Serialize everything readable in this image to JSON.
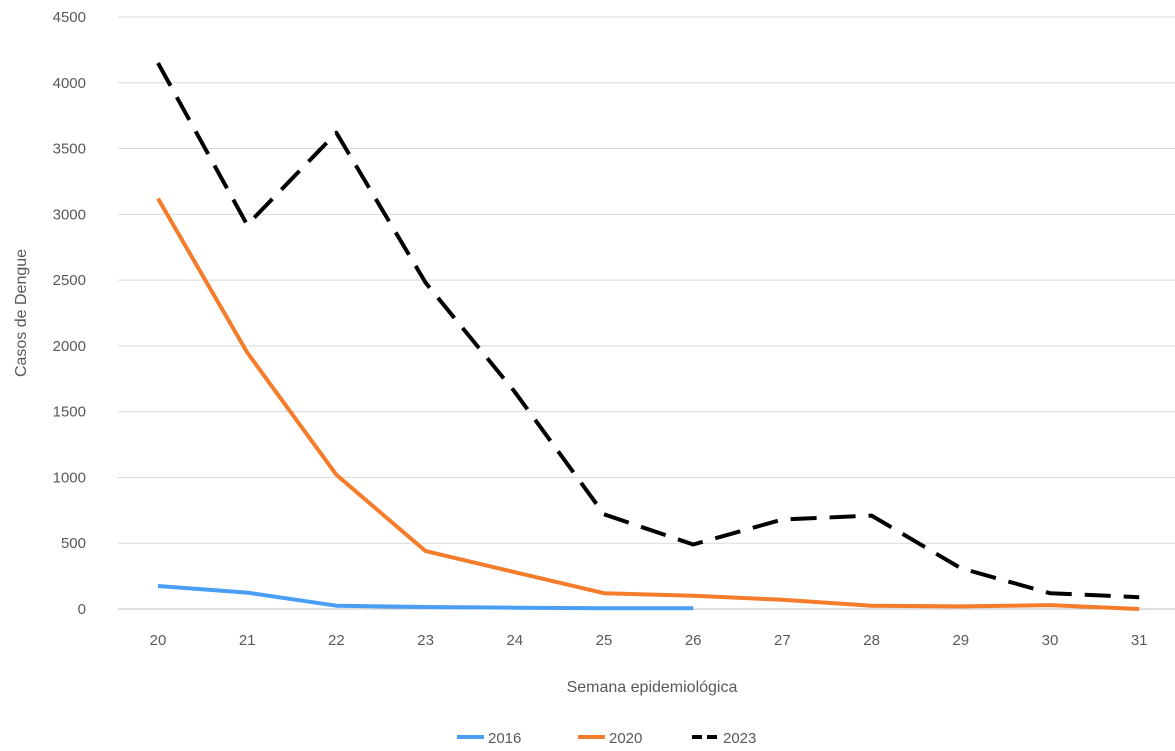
{
  "chart_data": {
    "type": "line",
    "xlabel": "Semana epidemiológica",
    "ylabel": "Casos de Dengue",
    "ylim": [
      0,
      4500
    ],
    "yticks": [
      0,
      500,
      1000,
      1500,
      2000,
      2500,
      3000,
      3500,
      4000,
      4500
    ],
    "x": [
      20,
      21,
      22,
      23,
      24,
      25,
      26,
      27,
      28,
      29,
      30,
      31
    ],
    "grid": "horizontal",
    "legend_position": "bottom",
    "series": [
      {
        "name": "2016",
        "color": "#4a9ff5",
        "dash": "solid",
        "x": [
          20,
          21,
          22,
          23,
          24,
          25,
          26
        ],
        "values": [
          175,
          125,
          25,
          15,
          10,
          5,
          5
        ]
      },
      {
        "name": "2020",
        "color": "#f47c2a",
        "dash": "solid",
        "x": [
          20,
          21,
          22,
          23,
          24,
          25,
          26,
          27,
          28,
          29,
          30,
          31
        ],
        "values": [
          3120,
          1950,
          1020,
          440,
          280,
          120,
          100,
          70,
          25,
          20,
          30,
          0
        ]
      },
      {
        "name": "2023",
        "color": "#000000",
        "dash": "dashed",
        "x": [
          20,
          21,
          22,
          23,
          24,
          25,
          26,
          27,
          28,
          29,
          30,
          31
        ],
        "values": [
          4150,
          2920,
          3620,
          2480,
          1650,
          720,
          490,
          680,
          710,
          310,
          120,
          90
        ]
      }
    ]
  }
}
